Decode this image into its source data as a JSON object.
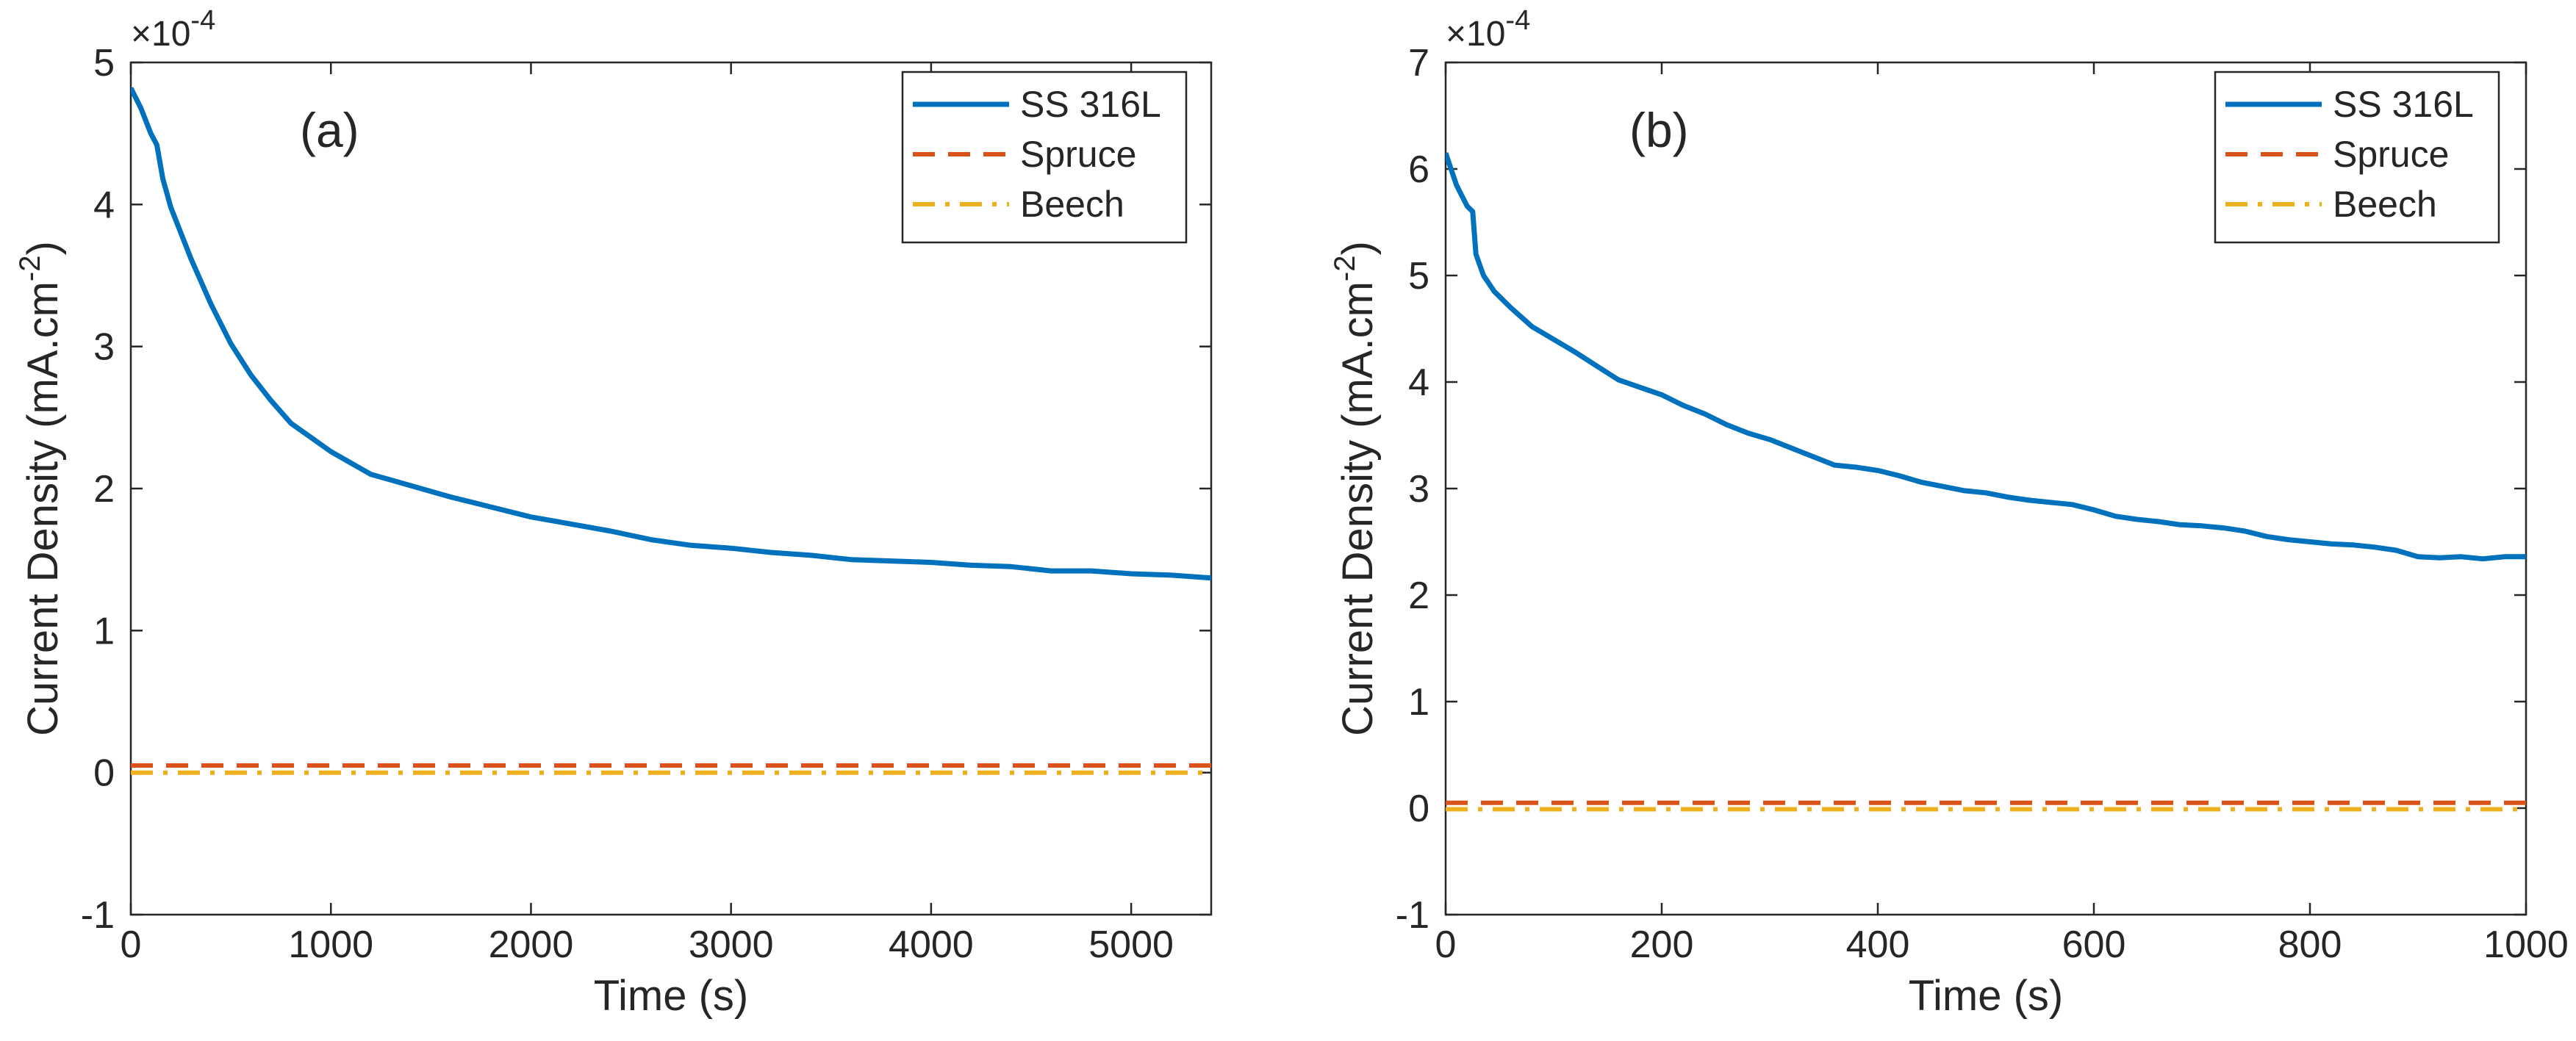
{
  "chart_data": [
    {
      "type": "line",
      "panel_label": "(a)",
      "xlabel": "Time (s)",
      "ylabel": "Current Density (mA.cm",
      "ylabel_superscript": "-2",
      "ylabel_close": ")",
      "y_multiplier": "×10",
      "y_multiplier_exp": "-4",
      "xlim": [
        0,
        5400
      ],
      "ylim": [
        -1,
        5
      ],
      "xticks": [
        0,
        1000,
        2000,
        3000,
        4000,
        5000
      ],
      "xtick_labels": [
        "0",
        "1000",
        "2000",
        "3000",
        "4000",
        "5000"
      ],
      "yticks": [
        -1,
        0,
        1,
        2,
        3,
        4,
        5
      ],
      "ytick_labels": [
        "-1",
        "0",
        "1",
        "2",
        "3",
        "4",
        "5"
      ],
      "grid": false,
      "legend_position": "top-right",
      "series": [
        {
          "name": "SS 316L",
          "color": "#0072BD",
          "style": "solid",
          "points": [
            [
              0,
              4.82
            ],
            [
              50,
              4.68
            ],
            [
              100,
              4.5
            ],
            [
              130,
              4.42
            ],
            [
              160,
              4.18
            ],
            [
              200,
              3.98
            ],
            [
              300,
              3.62
            ],
            [
              400,
              3.3
            ],
            [
              500,
              3.02
            ],
            [
              600,
              2.8
            ],
            [
              700,
              2.62
            ],
            [
              800,
              2.46
            ],
            [
              900,
              2.36
            ],
            [
              1000,
              2.26
            ],
            [
              1100,
              2.18
            ],
            [
              1200,
              2.1
            ],
            [
              1300,
              2.06
            ],
            [
              1400,
              2.02
            ],
            [
              1500,
              1.98
            ],
            [
              1600,
              1.94
            ],
            [
              1800,
              1.87
            ],
            [
              2000,
              1.8
            ],
            [
              2200,
              1.75
            ],
            [
              2400,
              1.7
            ],
            [
              2600,
              1.64
            ],
            [
              2800,
              1.6
            ],
            [
              3000,
              1.58
            ],
            [
              3200,
              1.55
            ],
            [
              3400,
              1.53
            ],
            [
              3600,
              1.5
            ],
            [
              3800,
              1.49
            ],
            [
              4000,
              1.48
            ],
            [
              4200,
              1.46
            ],
            [
              4400,
              1.45
            ],
            [
              4600,
              1.42
            ],
            [
              4800,
              1.42
            ],
            [
              5000,
              1.4
            ],
            [
              5200,
              1.39
            ],
            [
              5400,
              1.37
            ]
          ]
        },
        {
          "name": "Spruce",
          "color": "#D95319",
          "style": "dashed",
          "points": [
            [
              0,
              0.05
            ],
            [
              5400,
              0.05
            ]
          ]
        },
        {
          "name": "Beech",
          "color": "#EDB120",
          "style": "dashdot",
          "points": [
            [
              0,
              0.0
            ],
            [
              5400,
              0.0
            ]
          ]
        }
      ]
    },
    {
      "type": "line",
      "panel_label": "(b)",
      "xlabel": "Time (s)",
      "ylabel": "Current Density (mA.cm",
      "ylabel_superscript": "-2",
      "ylabel_close": ")",
      "y_multiplier": "×10",
      "y_multiplier_exp": "-4",
      "xlim": [
        0,
        1000
      ],
      "ylim": [
        -1,
        7
      ],
      "xticks": [
        0,
        200,
        400,
        600,
        800,
        1000
      ],
      "xtick_labels": [
        "0",
        "200",
        "400",
        "600",
        "800",
        "1000"
      ],
      "yticks": [
        -1,
        0,
        1,
        2,
        3,
        4,
        5,
        6,
        7
      ],
      "ytick_labels": [
        "-1",
        "0",
        "1",
        "2",
        "3",
        "4",
        "5",
        "6",
        "7"
      ],
      "grid": false,
      "legend_position": "top-right",
      "series": [
        {
          "name": "SS 316L",
          "color": "#0072BD",
          "style": "solid",
          "points": [
            [
              0,
              6.15
            ],
            [
              5,
              6.0
            ],
            [
              10,
              5.85
            ],
            [
              15,
              5.75
            ],
            [
              20,
              5.65
            ],
            [
              25,
              5.6
            ],
            [
              28,
              5.2
            ],
            [
              35,
              5.0
            ],
            [
              45,
              4.85
            ],
            [
              60,
              4.7
            ],
            [
              80,
              4.52
            ],
            [
              100,
              4.4
            ],
            [
              120,
              4.28
            ],
            [
              140,
              4.15
            ],
            [
              160,
              4.02
            ],
            [
              180,
              3.95
            ],
            [
              200,
              3.88
            ],
            [
              220,
              3.78
            ],
            [
              240,
              3.7
            ],
            [
              260,
              3.6
            ],
            [
              280,
              3.52
            ],
            [
              300,
              3.46
            ],
            [
              320,
              3.38
            ],
            [
              340,
              3.3
            ],
            [
              360,
              3.22
            ],
            [
              380,
              3.2
            ],
            [
              400,
              3.17
            ],
            [
              420,
              3.12
            ],
            [
              440,
              3.06
            ],
            [
              460,
              3.02
            ],
            [
              480,
              2.98
            ],
            [
              500,
              2.96
            ],
            [
              520,
              2.92
            ],
            [
              540,
              2.89
            ],
            [
              560,
              2.87
            ],
            [
              580,
              2.85
            ],
            [
              600,
              2.8
            ],
            [
              620,
              2.74
            ],
            [
              640,
              2.71
            ],
            [
              660,
              2.69
            ],
            [
              680,
              2.66
            ],
            [
              700,
              2.65
            ],
            [
              720,
              2.63
            ],
            [
              740,
              2.6
            ],
            [
              760,
              2.55
            ],
            [
              780,
              2.52
            ],
            [
              800,
              2.5
            ],
            [
              820,
              2.48
            ],
            [
              840,
              2.47
            ],
            [
              860,
              2.45
            ],
            [
              880,
              2.42
            ],
            [
              900,
              2.36
            ],
            [
              920,
              2.35
            ],
            [
              940,
              2.36
            ],
            [
              960,
              2.34
            ],
            [
              980,
              2.36
            ],
            [
              1000,
              2.36
            ]
          ]
        },
        {
          "name": "Spruce",
          "color": "#D95319",
          "style": "dashed",
          "points": [
            [
              0,
              0.05
            ],
            [
              1000,
              0.05
            ]
          ]
        },
        {
          "name": "Beech",
          "color": "#EDB120",
          "style": "dashdot",
          "points": [
            [
              0,
              -0.01
            ],
            [
              1000,
              -0.01
            ]
          ]
        }
      ]
    }
  ]
}
